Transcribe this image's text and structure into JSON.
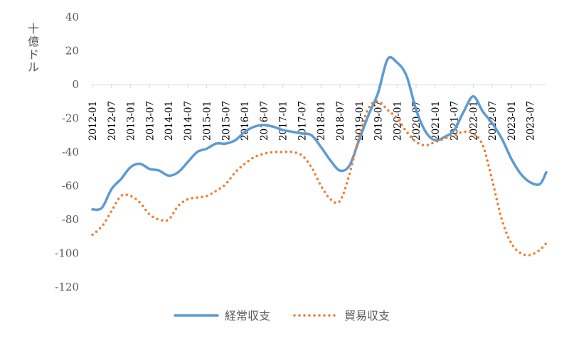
{
  "chart_data": {
    "type": "line",
    "title": "",
    "xlabel": "",
    "ylabel": "十億ドル",
    "ylim": [
      -120,
      40
    ],
    "yticks": [
      "40",
      "20",
      "0",
      "-20",
      "-40",
      "-60",
      "-80",
      "-100",
      "-120"
    ],
    "x_tick_labels": [
      "2012-01",
      "2012-07",
      "2013-01",
      "2013-07",
      "2014-01",
      "2014-07",
      "2015-01",
      "2015-07",
      "2016-01",
      "2016-07",
      "2017-01",
      "2017-07",
      "2018-01",
      "2018-07",
      "2019-01",
      "2019-07",
      "2020-01",
      "2020-07",
      "2021-01",
      "2021-07",
      "2022-01",
      "2022-07",
      "2023-01",
      "2023-07"
    ],
    "x_start": "2012-01",
    "x_end": "2023-12",
    "legend_position": "bottom",
    "grid": false,
    "series": [
      {
        "name": "経常収支",
        "color": "#5b9bd5",
        "style": "solid",
        "x": [
          "2012-01",
          "2012-04",
          "2012-07",
          "2012-10",
          "2013-01",
          "2013-04",
          "2013-07",
          "2013-10",
          "2014-01",
          "2014-04",
          "2014-07",
          "2014-10",
          "2015-01",
          "2015-04",
          "2015-07",
          "2015-10",
          "2016-01",
          "2016-04",
          "2016-07",
          "2016-10",
          "2017-01",
          "2017-04",
          "2017-07",
          "2017-10",
          "2018-01",
          "2018-04",
          "2018-07",
          "2018-10",
          "2019-01",
          "2019-04",
          "2019-07",
          "2019-10",
          "2020-01",
          "2020-04",
          "2020-07",
          "2020-10",
          "2021-01",
          "2021-04",
          "2021-07",
          "2021-10",
          "2022-01",
          "2022-04",
          "2022-07",
          "2022-10",
          "2023-01",
          "2023-04",
          "2023-07",
          "2023-10",
          "2023-12"
        ],
        "values": [
          -74,
          -73,
          -62,
          -56,
          -49,
          -47,
          -50,
          -51,
          -54,
          -52,
          -46,
          -40,
          -38,
          -35,
          -35,
          -33,
          -28,
          -25,
          -24,
          -25,
          -27,
          -28,
          -29,
          -30,
          -37,
          -45,
          -51,
          -48,
          -33,
          -18,
          -5,
          15,
          13,
          5,
          -15,
          -28,
          -33,
          -31,
          -27,
          -16,
          -7,
          -16,
          -23,
          -32,
          -44,
          -53,
          -58,
          -59,
          -52
        ]
      },
      {
        "name": "貿易収支",
        "color": "#ed7d31",
        "style": "dotted",
        "x": [
          "2012-01",
          "2012-04",
          "2012-07",
          "2012-10",
          "2013-01",
          "2013-04",
          "2013-07",
          "2013-10",
          "2014-01",
          "2014-04",
          "2014-07",
          "2014-10",
          "2015-01",
          "2015-04",
          "2015-07",
          "2015-10",
          "2016-01",
          "2016-04",
          "2016-07",
          "2016-10",
          "2017-01",
          "2017-04",
          "2017-07",
          "2017-10",
          "2018-01",
          "2018-04",
          "2018-07",
          "2018-10",
          "2019-01",
          "2019-04",
          "2019-07",
          "2019-10",
          "2020-01",
          "2020-04",
          "2020-07",
          "2020-10",
          "2021-01",
          "2021-04",
          "2021-07",
          "2021-10",
          "2022-01",
          "2022-04",
          "2022-07",
          "2022-10",
          "2023-01",
          "2023-04",
          "2023-07",
          "2023-10",
          "2023-12"
        ],
        "values": [
          -89,
          -84,
          -75,
          -66,
          -66,
          -70,
          -77,
          -80,
          -80,
          -72,
          -68,
          -67,
          -66,
          -63,
          -59,
          -52,
          -47,
          -43,
          -41,
          -40,
          -40,
          -40,
          -42,
          -49,
          -60,
          -68,
          -69,
          -53,
          -31,
          -14,
          -10,
          -15,
          -20,
          -28,
          -34,
          -36,
          -34,
          -32,
          -30,
          -28,
          -29,
          -36,
          -57,
          -80,
          -94,
          -100,
          -101,
          -98,
          -94
        ]
      }
    ]
  }
}
